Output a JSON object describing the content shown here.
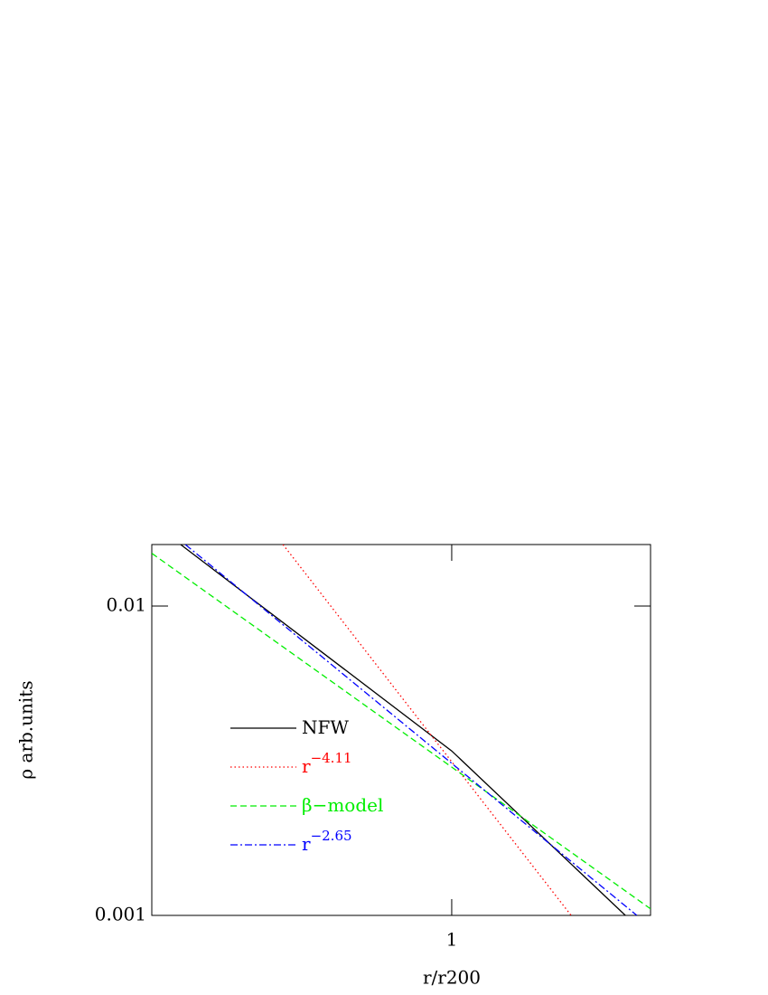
{
  "chart_data": {
    "type": "line",
    "log_x": true,
    "log_y": true,
    "xlabel": "r/r200",
    "ylabel": "ρ  arb.units",
    "xlim": [
      0.483,
      1.62
    ],
    "ylim": [
      0.001,
      0.0158
    ],
    "xticks": [
      1
    ],
    "yticks": [
      0.01,
      0.001
    ],
    "series": [
      {
        "name": "NFW",
        "color": "#000000",
        "dash": "solid",
        "x": [
          0.518,
          1,
          1.524
        ],
        "values": [
          0.0158,
          0.0034,
          0.001
        ]
      },
      {
        "name": "r",
        "exponent": "−4.11",
        "color": "#ff0000",
        "dash": "dotted",
        "x": [
          0.664,
          1.336
        ],
        "values": [
          0.0158,
          0.001
        ]
      },
      {
        "name": "β−model",
        "color": "#00ee00",
        "dash": "dashed",
        "x": [
          0.483,
          1.62
        ],
        "values": [
          0.0148,
          0.00105
        ]
      },
      {
        "name": "r",
        "exponent": "−2.65",
        "color": "#0000ff",
        "dash": "dashdot",
        "x": [
          0.524,
          1.567
        ],
        "values": [
          0.0158,
          0.001
        ]
      }
    ]
  }
}
